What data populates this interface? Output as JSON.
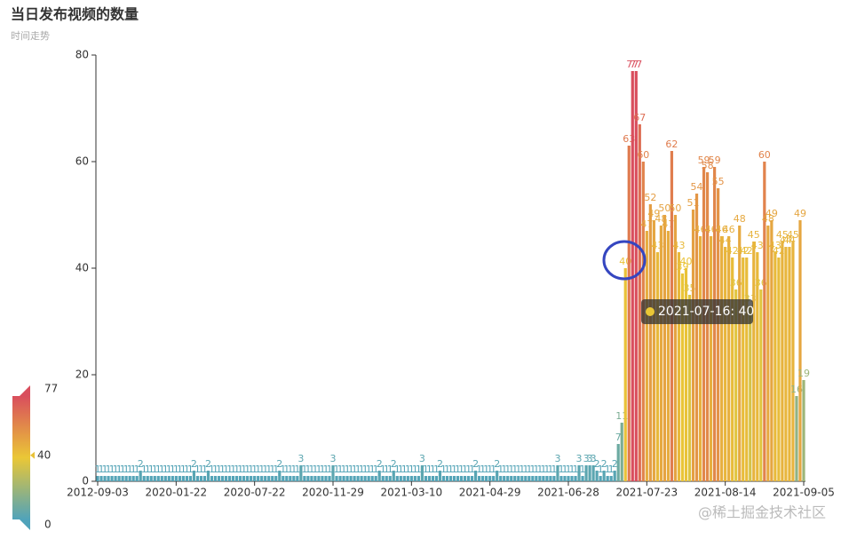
{
  "chart_data": {
    "type": "bar",
    "title": "当日发布视频的数量",
    "subtitle": "时间走势",
    "watermark": "@稀土掘金技术社区",
    "tooltip": "2021-07-16: 40",
    "ylim": [
      0,
      80
    ],
    "yticks": [
      0,
      20,
      40,
      60,
      80
    ],
    "visual_map": {
      "min": 0,
      "max": 77,
      "pointer": 40,
      "colors": [
        "#50a3ba",
        "#eac736",
        "#d94e5d"
      ]
    },
    "categories": [
      "2012-09-03",
      null,
      null,
      null,
      null,
      null,
      null,
      null,
      null,
      null,
      null,
      null,
      null,
      null,
      null,
      null,
      null,
      null,
      null,
      null,
      null,
      null,
      "2020-01-22",
      null,
      null,
      null,
      null,
      null,
      null,
      null,
      null,
      null,
      null,
      null,
      null,
      null,
      null,
      null,
      null,
      null,
      null,
      null,
      null,
      null,
      "2020-07-22",
      null,
      null,
      null,
      null,
      null,
      null,
      null,
      null,
      null,
      null,
      null,
      null,
      null,
      null,
      null,
      null,
      null,
      null,
      null,
      null,
      null,
      "2020-11-29",
      null,
      null,
      null,
      null,
      null,
      null,
      null,
      null,
      null,
      null,
      null,
      null,
      null,
      null,
      null,
      null,
      null,
      null,
      null,
      null,
      null,
      "2021-03-10",
      null,
      null,
      null,
      null,
      null,
      null,
      null,
      null,
      null,
      null,
      null,
      null,
      null,
      null,
      null,
      null,
      null,
      null,
      null,
      null,
      null,
      "2021-04-29",
      null,
      null,
      null,
      null,
      null,
      null,
      null,
      null,
      null,
      null,
      null,
      null,
      null,
      null,
      null,
      null,
      null,
      null,
      null,
      null,
      null,
      "2021-06-28",
      null,
      null,
      null,
      null,
      null,
      null,
      null,
      null,
      null,
      null,
      null,
      null,
      null,
      null,
      null,
      null,
      null,
      null,
      null,
      null,
      null,
      "2021-07-23",
      null,
      null,
      null,
      null,
      null,
      null,
      null,
      null,
      null,
      null,
      null,
      null,
      null,
      null,
      null,
      null,
      null,
      null,
      null,
      null,
      null,
      "2021-08-14",
      null,
      null,
      null,
      null,
      null,
      null,
      null,
      null,
      null,
      null,
      null,
      null,
      null,
      null,
      null,
      null,
      null,
      null,
      null,
      null,
      null,
      "2021-09-05"
    ],
    "values": [
      1,
      1,
      1,
      1,
      1,
      1,
      1,
      1,
      1,
      1,
      1,
      1,
      2,
      1,
      1,
      1,
      1,
      1,
      1,
      1,
      1,
      1,
      1,
      1,
      1,
      1,
      1,
      2,
      1,
      1,
      1,
      2,
      1,
      1,
      1,
      1,
      1,
      1,
      1,
      1,
      1,
      1,
      1,
      1,
      1,
      1,
      1,
      1,
      1,
      1,
      1,
      2,
      1,
      1,
      1,
      1,
      1,
      3,
      1,
      1,
      1,
      1,
      1,
      1,
      1,
      1,
      3,
      1,
      1,
      1,
      1,
      1,
      1,
      1,
      1,
      1,
      1,
      1,
      1,
      2,
      1,
      1,
      1,
      2,
      1,
      1,
      1,
      1,
      1,
      1,
      1,
      3,
      1,
      1,
      1,
      1,
      2,
      1,
      1,
      1,
      1,
      1,
      1,
      1,
      1,
      1,
      2,
      1,
      1,
      1,
      1,
      1,
      2,
      1,
      1,
      1,
      1,
      1,
      1,
      1,
      1,
      1,
      1,
      1,
      1,
      1,
      1,
      1,
      1,
      3,
      1,
      1,
      1,
      1,
      1,
      3,
      1,
      3,
      3,
      3,
      2,
      1,
      2,
      1,
      1,
      2,
      7,
      11,
      40,
      63,
      77,
      77,
      67,
      60,
      47,
      52,
      49,
      43,
      48,
      50,
      47,
      62,
      50,
      43,
      39,
      40,
      35,
      51,
      54,
      46,
      59,
      58,
      46,
      59,
      55,
      46,
      44,
      46,
      42,
      36,
      48,
      42,
      42,
      33,
      45,
      43,
      36,
      60,
      48,
      49,
      43,
      42,
      45,
      44,
      44,
      45,
      16,
      49,
      19
    ]
  }
}
